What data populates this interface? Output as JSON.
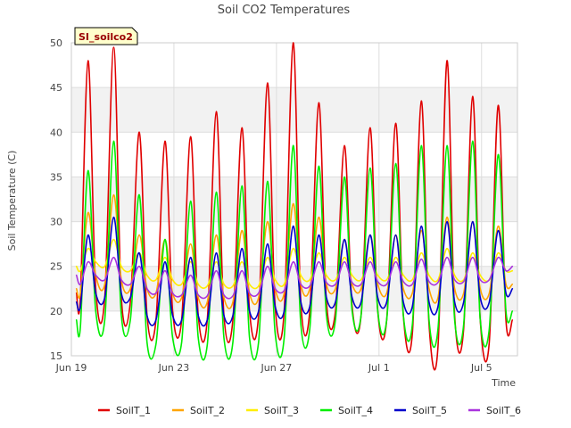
{
  "chart_data": {
    "type": "line",
    "title": "Soil CO2 Temperatures",
    "badge": "SI_soilco2",
    "xlabel": "Time",
    "ylabel": "Soil Temperature (C)",
    "ylim": [
      15,
      50
    ],
    "yticks": [
      15,
      20,
      25,
      30,
      35,
      40,
      45,
      50
    ],
    "xlim_days": [
      0,
      17.4
    ],
    "xticks": [
      {
        "label": "Jun 19",
        "day": 0
      },
      {
        "label": "Jun 23",
        "day": 4
      },
      {
        "label": "Jun 27",
        "day": 8
      },
      {
        "label": "Jul 1",
        "day": 12
      },
      {
        "label": "Jul 5",
        "day": 16
      }
    ],
    "bands": [
      [
        20,
        25
      ],
      [
        30,
        35
      ],
      [
        40,
        45
      ]
    ],
    "grid": true,
    "legend_position": "bottom",
    "series": [
      {
        "name": "SoilT_1",
        "color": "#e00000",
        "x": [
          0.2,
          0.35,
          0.65,
          0.95,
          1.3,
          1.65,
          1.95,
          2.3,
          2.65,
          2.95,
          3.3,
          3.65,
          3.95,
          4.3,
          4.65,
          4.95,
          5.3,
          5.65,
          5.95,
          6.3,
          6.65,
          6.95,
          7.3,
          7.65,
          7.95,
          8.3,
          8.65,
          8.95,
          9.3,
          9.65,
          9.95,
          10.3,
          10.65,
          10.95,
          11.3,
          11.65,
          11.95,
          12.3,
          12.65,
          12.95,
          13.3,
          13.65,
          13.95,
          14.3,
          14.65,
          14.95,
          15.3,
          15.65,
          15.95,
          16.3,
          16.65,
          16.95,
          17.2
        ],
        "y": [
          22,
          21.5,
          48,
          22.5,
          21.5,
          49.5,
          21.5,
          21,
          40,
          19.5,
          19,
          39,
          20,
          19,
          39.5,
          19.5,
          19,
          42.3,
          19.5,
          19,
          40.5,
          20,
          19.5,
          45.5,
          20.5,
          20,
          50,
          21,
          20,
          43.3,
          21,
          20,
          38.5,
          20.5,
          19.5,
          40.5,
          20,
          19,
          41,
          19.5,
          17.5,
          43.5,
          18.5,
          16,
          48,
          19.5,
          18,
          44,
          19,
          16.5,
          43,
          19,
          19
        ]
      },
      {
        "name": "SoilT_2",
        "color": "#ffa500",
        "x": [
          0.2,
          0.35,
          0.65,
          0.95,
          1.3,
          1.65,
          1.95,
          2.3,
          2.65,
          2.95,
          3.3,
          3.65,
          3.95,
          4.3,
          4.65,
          4.95,
          5.3,
          5.65,
          5.95,
          6.3,
          6.65,
          6.95,
          7.3,
          7.65,
          7.95,
          8.3,
          8.65,
          8.95,
          9.3,
          9.65,
          9.95,
          10.3,
          10.65,
          10.95,
          11.3,
          11.65,
          11.95,
          12.3,
          12.65,
          12.95,
          13.3,
          13.65,
          13.95,
          14.3,
          14.65,
          14.95,
          15.3,
          15.65,
          15.95,
          16.3,
          16.65,
          16.95,
          17.2
        ],
        "y": [
          22.5,
          22,
          31,
          24,
          23,
          33,
          23.5,
          22.5,
          28.5,
          22.5,
          22,
          28,
          22,
          21.5,
          27.5,
          21.5,
          21,
          28.5,
          21.5,
          21,
          29,
          22,
          21.5,
          30,
          22.5,
          22,
          32,
          23,
          22.5,
          30.5,
          23,
          22.5,
          28,
          23,
          22.5,
          28.5,
          23,
          22,
          28.5,
          22.5,
          22,
          29,
          22.5,
          21.5,
          30.5,
          22.5,
          22,
          30,
          22.5,
          22,
          29.5,
          23,
          23
        ]
      },
      {
        "name": "SoilT_3",
        "color": "#ffee00",
        "x": [
          0.2,
          0.35,
          0.65,
          0.95,
          1.3,
          1.65,
          1.95,
          2.3,
          2.65,
          2.95,
          3.3,
          3.65,
          3.95,
          4.3,
          4.65,
          4.95,
          5.3,
          5.65,
          5.95,
          6.3,
          6.65,
          6.95,
          7.3,
          7.65,
          7.95,
          8.3,
          8.65,
          8.95,
          9.3,
          9.65,
          9.95,
          10.3,
          10.65,
          10.95,
          11.3,
          11.65,
          11.95,
          12.3,
          12.65,
          12.95,
          13.3,
          13.65,
          13.95,
          14.3,
          14.65,
          14.95,
          15.3,
          15.65,
          15.95,
          16.3,
          16.65,
          16.95,
          17.2
        ],
        "y": [
          25,
          24.5,
          27,
          25.5,
          25,
          28,
          25,
          24.5,
          26.5,
          24,
          23.5,
          26,
          23.5,
          23,
          25.5,
          23,
          22.8,
          25.5,
          23,
          22.8,
          25.5,
          23,
          22.8,
          26,
          23.5,
          23,
          27,
          24,
          23.5,
          26.5,
          24,
          23.5,
          26,
          24,
          23.5,
          26,
          24,
          23.5,
          26,
          24,
          23.5,
          26.5,
          24,
          23.5,
          27,
          24,
          23.5,
          26.5,
          24,
          23.5,
          26.5,
          24.5,
          24.5
        ]
      },
      {
        "name": "SoilT_4",
        "color": "#00ee00",
        "x": [
          0.2,
          0.35,
          0.65,
          0.95,
          1.3,
          1.65,
          1.95,
          2.3,
          2.65,
          2.95,
          3.3,
          3.65,
          3.95,
          4.3,
          4.65,
          4.95,
          5.3,
          5.65,
          5.95,
          6.3,
          6.65,
          6.95,
          7.3,
          7.65,
          7.95,
          8.3,
          8.65,
          8.95,
          9.3,
          9.65,
          9.95,
          10.3,
          10.65,
          10.95,
          11.3,
          11.65,
          11.95,
          12.3,
          12.65,
          12.95,
          13.3,
          13.65,
          13.95,
          14.3,
          14.65,
          14.95,
          15.3,
          15.65,
          15.95,
          16.3,
          16.65,
          16.95,
          17.2
        ],
        "y": [
          19,
          18.2,
          35.7,
          20,
          19,
          39,
          19.5,
          19,
          33,
          16.5,
          16.3,
          28,
          17,
          16.5,
          32.3,
          17,
          16.2,
          33.3,
          17,
          16.5,
          34,
          17,
          16.5,
          34.5,
          17.5,
          17,
          38.5,
          18.5,
          18,
          36.2,
          19.5,
          19,
          35,
          20,
          19.5,
          36,
          20,
          19,
          36.5,
          19.5,
          18.5,
          38.5,
          19,
          18,
          38.5,
          19,
          18.5,
          39,
          19,
          18,
          37.5,
          20,
          20
        ]
      },
      {
        "name": "SoilT_5",
        "color": "#0000cc",
        "x": [
          0.2,
          0.35,
          0.65,
          0.95,
          1.3,
          1.65,
          1.95,
          2.3,
          2.65,
          2.95,
          3.3,
          3.65,
          3.95,
          4.3,
          4.65,
          4.95,
          5.3,
          5.65,
          5.95,
          6.3,
          6.65,
          6.95,
          7.3,
          7.65,
          7.95,
          8.3,
          8.65,
          8.95,
          9.3,
          9.65,
          9.95,
          10.3,
          10.65,
          10.95,
          11.3,
          11.65,
          11.95,
          12.3,
          12.65,
          12.95,
          13.3,
          13.65,
          13.95,
          14.3,
          14.65,
          14.95,
          15.3,
          15.65,
          15.95,
          16.3,
          16.65,
          16.95,
          17.2
        ],
        "y": [
          21,
          20.5,
          28.5,
          22,
          21.5,
          30.5,
          22,
          21.5,
          26.5,
          19.5,
          19,
          25.5,
          19.5,
          19,
          26,
          19.5,
          19,
          26.5,
          19.5,
          19.5,
          27,
          20,
          20,
          27.5,
          20.5,
          20,
          29.5,
          21,
          20.5,
          28.5,
          21.5,
          21,
          28,
          21.5,
          21,
          28.5,
          21.5,
          21,
          28.5,
          21,
          20.5,
          29.5,
          21,
          20.5,
          30,
          21,
          21,
          30,
          21.5,
          21,
          29,
          22,
          22.5
        ]
      },
      {
        "name": "SoilT_6",
        "color": "#aa33dd",
        "x": [
          0.2,
          0.35,
          0.65,
          0.95,
          1.3,
          1.65,
          1.95,
          2.3,
          2.65,
          2.95,
          3.3,
          3.65,
          3.95,
          4.3,
          4.65,
          4.95,
          5.3,
          5.65,
          5.95,
          6.3,
          6.65,
          6.95,
          7.3,
          7.65,
          7.95,
          8.3,
          8.65,
          8.95,
          9.3,
          9.65,
          9.95,
          10.3,
          10.65,
          10.95,
          11.3,
          11.65,
          11.95,
          12.3,
          12.65,
          12.95,
          13.3,
          13.65,
          13.95,
          14.3,
          14.65,
          14.95,
          15.3,
          15.65,
          15.95,
          16.3,
          16.65,
          16.95,
          17.2
        ],
        "y": [
          24,
          23,
          25.5,
          24,
          23.5,
          26,
          23.5,
          23,
          25,
          22.5,
          22,
          24.5,
          22,
          21.8,
          24,
          21.8,
          21.7,
          24.5,
          21.8,
          21.7,
          24.5,
          22,
          22,
          25,
          22.5,
          22.3,
          25.5,
          23,
          22.8,
          25.5,
          23.2,
          23,
          25.5,
          23.2,
          23,
          25.5,
          23.3,
          23,
          25.5,
          23.3,
          23,
          25.8,
          23.3,
          23.2,
          26,
          23.5,
          23.3,
          26,
          23.5,
          23.5,
          26,
          24.5,
          25
        ]
      }
    ]
  }
}
